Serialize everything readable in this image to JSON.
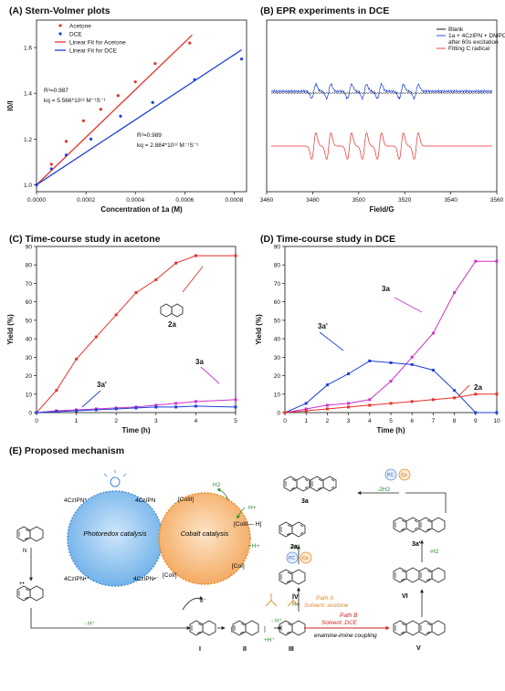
{
  "panels": {
    "a": {
      "title": "(A) Stern-Volmer plots"
    },
    "b": {
      "title": "(B) EPR experiments in DCE"
    },
    "c": {
      "title": "(C) Time-course study in acetone"
    },
    "d": {
      "title": "(D) Time-course study in DCE"
    },
    "e": {
      "title": "(E) Proposed mechanism"
    }
  },
  "chart_data": [
    {
      "id": "A",
      "type": "scatter",
      "xlabel": "Concentration of 1a (M)",
      "ylabel": "I0/I",
      "xlim": [
        0,
        0.00085
      ],
      "ylim": [
        0.97,
        1.72
      ],
      "xticks": [
        "0.0000",
        "0.0002",
        "0.0004",
        "0.0006",
        "0.0008"
      ],
      "yticks": [
        "1.0",
        "1.2",
        "1.4",
        "1.6"
      ],
      "legend": [
        "Acetone",
        "DCE",
        "Linear Fit for Acetone",
        "Linear Fit for DCE"
      ],
      "series": [
        {
          "name": "Acetone",
          "color": "#e8312a",
          "x": [
            0,
            6e-05,
            0.00012,
            0.00019,
            0.00026,
            0.00033,
            0.0004,
            0.00048,
            0.00062
          ],
          "y": [
            1.0,
            1.09,
            1.19,
            1.28,
            1.33,
            1.39,
            1.45,
            1.53,
            1.62
          ]
        },
        {
          "name": "DCE",
          "color": "#1f3fd8",
          "x": [
            0,
            6e-05,
            0.00012,
            0.00022,
            0.00034,
            0.00047,
            0.00064,
            0.00083
          ],
          "y": [
            1.0,
            1.07,
            1.13,
            1.2,
            1.3,
            1.36,
            1.46,
            1.55
          ]
        }
      ],
      "fits": [
        {
          "name": "Linear Fit for Acetone",
          "color": "#e8312a",
          "x": [
            0,
            0.00063
          ],
          "y": [
            1.0,
            1.655
          ]
        },
        {
          "name": "Linear Fit for DCE",
          "color": "#1f3fd8",
          "x": [
            0,
            0.00083
          ],
          "y": [
            1.0,
            1.59
          ]
        }
      ],
      "annotations": {
        "acetone_r2": "R²=0.987",
        "acetone_kq": "kq = 5.566*10¹² M⁻¹S⁻¹",
        "dce_r2": "R²=0.989",
        "dce_kq": "kq = 2.884*10¹² M⁻¹S⁻¹"
      }
    },
    {
      "id": "B",
      "type": "line",
      "xlabel": "Field/G",
      "xlim": [
        3460,
        3560
      ],
      "xticks": [
        "3460",
        "3480",
        "3500",
        "3520",
        "3540",
        "3560"
      ],
      "legend": [
        "Blank",
        "1a + 4CzIPN + DMPO",
        "after 60s excitation",
        "Fitting C radical"
      ],
      "series": [
        {
          "name": "Blank",
          "color": "#000000"
        },
        {
          "name": "1a + 4CzIPN + DMPO after 60s excitation",
          "color": "#1f3fd8"
        },
        {
          "name": "Fitting C radical",
          "color": "#e8312a"
        }
      ],
      "peaks": [
        3480.5,
        3487.0,
        3496.0,
        3502.5,
        3509.0,
        3518.5,
        3525.0
      ]
    },
    {
      "id": "C",
      "type": "line",
      "xlabel": "Time (h)",
      "ylabel": "Yield (%)",
      "xlim": [
        0,
        5
      ],
      "ylim": [
        0,
        90
      ],
      "xticks": [
        "0",
        "1",
        "2",
        "3",
        "4",
        "5"
      ],
      "yticks": [
        "0",
        "10",
        "20",
        "30",
        "40",
        "50",
        "60",
        "70",
        "80",
        "90"
      ],
      "series": [
        {
          "name": "2a",
          "color": "#e8312a",
          "x": [
            0,
            0.5,
            1,
            1.5,
            2,
            2.5,
            3,
            3.5,
            4,
            5
          ],
          "y": [
            0,
            12,
            29,
            41,
            53,
            65,
            72,
            81,
            85,
            85
          ]
        },
        {
          "name": "3a",
          "color": "#cc33cc",
          "x": [
            0,
            0.5,
            1,
            1.5,
            2,
            2.5,
            3,
            3.5,
            4,
            5
          ],
          "y": [
            0,
            1,
            1.5,
            2,
            2.5,
            3,
            4,
            5,
            6,
            7
          ]
        },
        {
          "name": "3a'",
          "color": "#1f3fd8",
          "x": [
            0,
            0.5,
            1,
            1.5,
            2,
            2.5,
            3,
            3.5,
            4,
            5
          ],
          "y": [
            0,
            0.5,
            1,
            1.5,
            2,
            2.5,
            3,
            3,
            3.5,
            3
          ]
        }
      ],
      "labels": {
        "2a": "2a",
        "3a": "3a",
        "3a_prime": "3a'"
      }
    },
    {
      "id": "D",
      "type": "line",
      "xlabel": "Time (h)",
      "ylabel": "Yield (%)",
      "xlim": [
        0,
        10
      ],
      "ylim": [
        0,
        90
      ],
      "xticks": [
        "0",
        "1",
        "2",
        "3",
        "4",
        "5",
        "6",
        "7",
        "8",
        "9",
        "10"
      ],
      "yticks": [
        "0",
        "10",
        "20",
        "30",
        "40",
        "50",
        "60",
        "70",
        "80",
        "90"
      ],
      "series": [
        {
          "name": "3a",
          "color": "#cc33cc",
          "x": [
            0,
            1,
            2,
            3,
            4,
            5,
            6,
            7,
            8,
            9,
            10
          ],
          "y": [
            0,
            2,
            4,
            5,
            7,
            17,
            30,
            43,
            65,
            82,
            82
          ]
        },
        {
          "name": "3a'",
          "color": "#1f3fd8",
          "x": [
            0,
            1,
            2,
            3,
            4,
            5,
            6,
            7,
            8,
            9,
            10
          ],
          "y": [
            0,
            5,
            15,
            21,
            28,
            27,
            26,
            23,
            12,
            0,
            0
          ]
        },
        {
          "name": "2a",
          "color": "#e8312a",
          "x": [
            0,
            1,
            2,
            3,
            4,
            5,
            6,
            7,
            8,
            9,
            10
          ],
          "y": [
            0,
            1,
            2,
            3,
            4,
            5,
            6,
            7,
            8,
            10,
            10
          ]
        }
      ],
      "labels": {
        "2a": "2a",
        "3a": "3a",
        "3a_prime": "3a'"
      }
    }
  ],
  "mechanism": {
    "photoredox": "Photoredox\ncatalysis",
    "cobalt": "Cobalt\ncatalysis",
    "pc_star": "4CzIPN*",
    "pc": "4CzIPN",
    "pc_rad_anion": "4CzIPN•⁻",
    "pc_rad_cation": "4CzIPN•⁺",
    "co_iii": "[CoIII]",
    "co_iii_h": "[CoIII— H]",
    "co_ii": "[CoII]",
    "co_i": "[CoI]",
    "h2": "H2",
    "h_plus_1": "H+",
    "h_plus_2": "+H+",
    "e_minus": "e⁻",
    "minus_h": "- H⁺",
    "minus_h_2": "- H⁺",
    "plus_h": "+H⁺",
    "h_plus_3": "H+",
    "minus_h2_a": "-H2",
    "minus_h2_b": "-H2",
    "minus_2h2": "-2H2",
    "pc_label": "PC",
    "co_label": "Co",
    "path_a": "Path A",
    "path_a_solvent": "Solvent: acetone",
    "path_b": "Path B",
    "path_b_solvent": "Solvent: DCE",
    "coupling": "enamine-imine coupling",
    "labels": {
      "i": "I",
      "ii": "II",
      "iii": "III",
      "iv": "IV",
      "v": "V",
      "vi": "VI",
      "a2": "2a",
      "a3": "3a",
      "a3p": "3a'"
    }
  }
}
